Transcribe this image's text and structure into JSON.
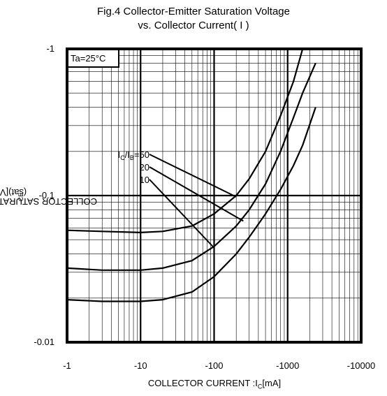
{
  "chart_data": {
    "type": "line",
    "title_line1": "Fig.4 Collector-Emitter Saturation Voltage",
    "title_line2": "vs. Collector Current( I )",
    "xlabel": "COLLECTOR CURRENT :I",
    "xlabel_sub": "C",
    "xlabel_unit": "[mA]",
    "ylabel": "COLLECTOR SATURATION VOLTAGE :V",
    "ylabel_sub": "CE",
    "ylabel_unit": "(sat)[V]",
    "x_scale": "log",
    "y_scale": "log",
    "xlim": [
      -1,
      -10000
    ],
    "ylim": [
      -0.01,
      -1
    ],
    "x_ticks": [
      "-1",
      "-10",
      "-100",
      "-1000",
      "-10000"
    ],
    "y_ticks": [
      "-0.01",
      "-0.1",
      "-1"
    ],
    "grid": true,
    "condition": "Ta=25°C",
    "series_label_prefix": "I",
    "series_label_sub1": "C",
    "series_label_sep": "/I",
    "series_label_sub2": "B",
    "series": [
      {
        "name": "50",
        "x": [
          -1,
          -3,
          -10,
          -20,
          -50,
          -100,
          -200,
          -300,
          -500,
          -800,
          -1200,
          -1600,
          -2400
        ],
        "y": [
          -0.058,
          -0.057,
          -0.056,
          -0.057,
          -0.062,
          -0.075,
          -0.1,
          -0.13,
          -0.2,
          -0.35,
          -0.6,
          -1.0,
          -1.5
        ]
      },
      {
        "name": "20",
        "x": [
          -1,
          -3,
          -10,
          -20,
          -50,
          -100,
          -200,
          -300,
          -500,
          -800,
          -1200,
          -1600,
          -2400
        ],
        "y": [
          -0.032,
          -0.031,
          -0.031,
          -0.032,
          -0.036,
          -0.045,
          -0.062,
          -0.08,
          -0.12,
          -0.2,
          -0.34,
          -0.5,
          -0.8
        ]
      },
      {
        "name": "10",
        "x": [
          -1,
          -3,
          -10,
          -20,
          -50,
          -100,
          -200,
          -300,
          -500,
          -800,
          -1200,
          -1600,
          -2400
        ],
        "y": [
          -0.0195,
          -0.019,
          -0.019,
          -0.0195,
          -0.022,
          -0.028,
          -0.04,
          -0.052,
          -0.075,
          -0.11,
          -0.16,
          -0.22,
          -0.4
        ]
      }
    ]
  }
}
